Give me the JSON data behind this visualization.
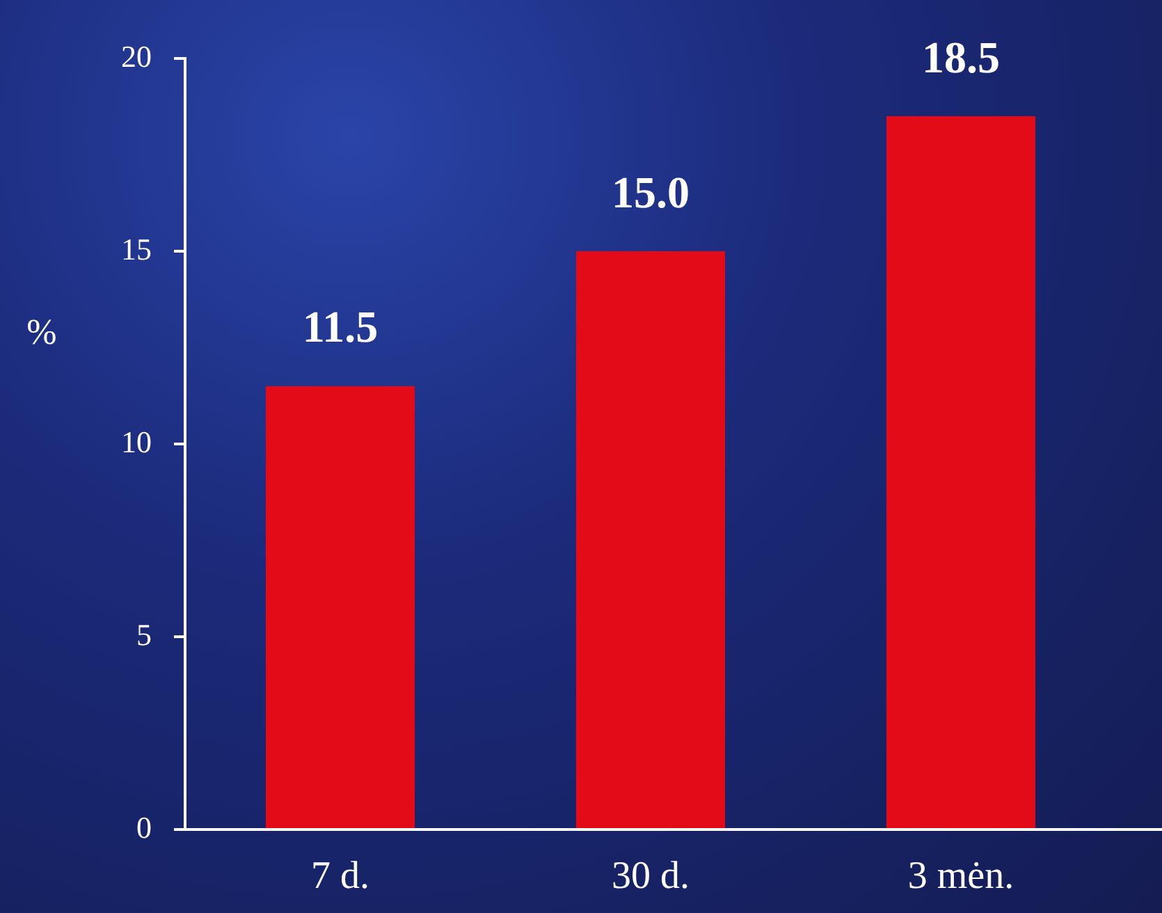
{
  "chart_data": {
    "type": "bar",
    "ylabel": "%",
    "categories": [
      "7 d.",
      "30 d.",
      "3 mėn."
    ],
    "values": [
      11.5,
      15.0,
      18.5
    ],
    "value_labels": [
      "11.5",
      "15.0",
      "18.5"
    ],
    "color": "#e30b17",
    "ylim": [
      0,
      20
    ],
    "yticks": [
      0,
      5,
      10,
      15,
      20
    ],
    "grid": false,
    "legend": false
  }
}
